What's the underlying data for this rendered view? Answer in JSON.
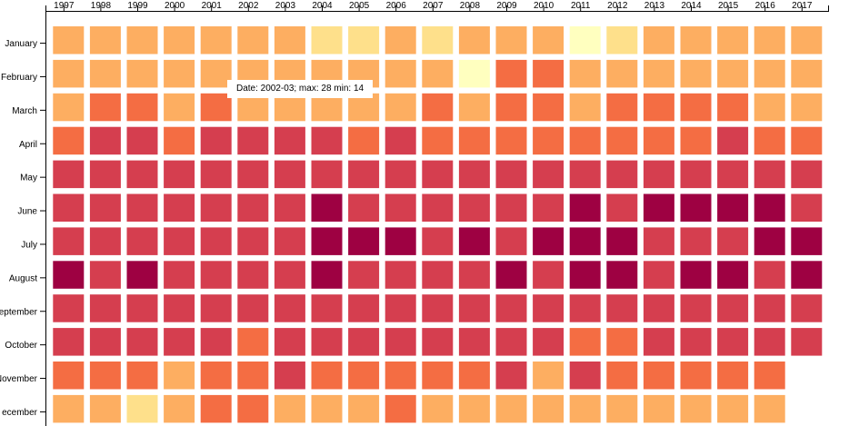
{
  "colors": {
    "c1": "#ffffbf",
    "c2": "#fee08b",
    "c3": "#fdae61",
    "c4": "#f46d43",
    "c5": "#d53e4f",
    "c6": "#9e0142"
  },
  "tooltip": {
    "text": "Date: 2002-03; max: 28 min: 14"
  },
  "chart_data": {
    "type": "heatmap",
    "x": [
      "1997",
      "1998",
      "1999",
      "2000",
      "2001",
      "2002",
      "2003",
      "2004",
      "2005",
      "2006",
      "2007",
      "2008",
      "2009",
      "2010",
      "2011",
      "2012",
      "2013",
      "2014",
      "2015",
      "2016",
      "2017"
    ],
    "y": [
      "January",
      "February",
      "March",
      "April",
      "May",
      "June",
      "July",
      "August",
      "September",
      "October",
      "November",
      "December"
    ],
    "y_tick_labels_visible": [
      "January",
      "February",
      "March",
      "April",
      "May",
      "June",
      "July",
      "August",
      "eptember",
      "October",
      "November",
      "ecember"
    ],
    "color_scale": [
      "#ffffbf",
      "#fee08b",
      "#fdae61",
      "#f46d43",
      "#d53e4f",
      "#9e0142"
    ],
    "values": [
      [
        3,
        3,
        3,
        3,
        3,
        3,
        3,
        2,
        2,
        3,
        2,
        3,
        3,
        3,
        1,
        2,
        3,
        3,
        3,
        3,
        3
      ],
      [
        3,
        3,
        3,
        3,
        3,
        3,
        3,
        3,
        3,
        3,
        3,
        1,
        4,
        4,
        3,
        3,
        3,
        3,
        3,
        3,
        3
      ],
      [
        3,
        4,
        4,
        3,
        4,
        3,
        3,
        3,
        3,
        3,
        4,
        3,
        4,
        4,
        3,
        4,
        4,
        4,
        4,
        3,
        3
      ],
      [
        4,
        5,
        5,
        4,
        5,
        5,
        5,
        5,
        4,
        5,
        4,
        4,
        4,
        4,
        4,
        4,
        4,
        4,
        5,
        4,
        4
      ],
      [
        5,
        5,
        5,
        5,
        5,
        5,
        5,
        5,
        5,
        5,
        5,
        5,
        5,
        5,
        5,
        5,
        5,
        5,
        5,
        5,
        5
      ],
      [
        5,
        5,
        5,
        5,
        5,
        5,
        5,
        6,
        5,
        5,
        5,
        5,
        5,
        5,
        6,
        5,
        6,
        6,
        6,
        6,
        5
      ],
      [
        5,
        5,
        5,
        5,
        5,
        5,
        5,
        6,
        6,
        6,
        5,
        6,
        5,
        6,
        6,
        6,
        5,
        5,
        5,
        6,
        6
      ],
      [
        6,
        5,
        6,
        5,
        5,
        5,
        5,
        6,
        5,
        5,
        5,
        5,
        6,
        5,
        6,
        6,
        5,
        6,
        6,
        5,
        6
      ],
      [
        5,
        5,
        5,
        5,
        5,
        5,
        5,
        5,
        5,
        5,
        5,
        5,
        5,
        5,
        5,
        5,
        5,
        5,
        5,
        5,
        5
      ],
      [
        5,
        5,
        5,
        5,
        5,
        4,
        5,
        5,
        5,
        5,
        5,
        5,
        5,
        5,
        4,
        4,
        5,
        5,
        5,
        5,
        5
      ],
      [
        4,
        4,
        4,
        3,
        4,
        4,
        5,
        4,
        4,
        4,
        4,
        4,
        5,
        3,
        5,
        4,
        4,
        4,
        4,
        4,
        null
      ],
      [
        3,
        3,
        2,
        3,
        4,
        4,
        3,
        3,
        3,
        4,
        3,
        3,
        3,
        3,
        3,
        3,
        3,
        3,
        3,
        3,
        null
      ]
    ]
  }
}
